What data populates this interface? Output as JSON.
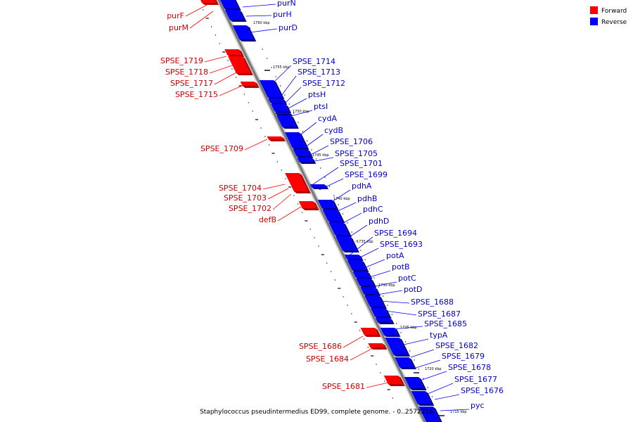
{
  "caption": "Staphylococcus pseudintermedius ED99, complete genome. - 0..2572216",
  "legend": [
    {
      "label": "Forward",
      "color": "#ff0000"
    },
    {
      "label": "Reverse",
      "color": "#0000ff"
    }
  ],
  "ticks": [
    "1760 kbp",
    "1755 kbp",
    "1750 kbp",
    "1745 kbp",
    "1740 kbp",
    "1735 kbp",
    "1730 kbp",
    "1725 kbp",
    "1720 kbp",
    "1715 kbp"
  ],
  "genes": [
    {
      "name": "purF",
      "strand": "forward"
    },
    {
      "name": "purM",
      "strand": "forward"
    },
    {
      "name": "purN",
      "strand": "reverse"
    },
    {
      "name": "purH",
      "strand": "reverse"
    },
    {
      "name": "purD",
      "strand": "reverse"
    },
    {
      "name": "SPSE_1719",
      "strand": "forward"
    },
    {
      "name": "SPSE_1718",
      "strand": "forward"
    },
    {
      "name": "SPSE_1717",
      "strand": "forward"
    },
    {
      "name": "SPSE_1715",
      "strand": "forward"
    },
    {
      "name": "SPSE_1714",
      "strand": "reverse"
    },
    {
      "name": "SPSE_1713",
      "strand": "reverse"
    },
    {
      "name": "SPSE_1712",
      "strand": "reverse"
    },
    {
      "name": "ptsH",
      "strand": "reverse"
    },
    {
      "name": "ptsI",
      "strand": "reverse"
    },
    {
      "name": "cydA",
      "strand": "reverse"
    },
    {
      "name": "cydB",
      "strand": "reverse"
    },
    {
      "name": "SPSE_1709",
      "strand": "forward"
    },
    {
      "name": "SPSE_1706",
      "strand": "reverse"
    },
    {
      "name": "SPSE_1705",
      "strand": "reverse"
    },
    {
      "name": "SPSE_1701",
      "strand": "reverse"
    },
    {
      "name": "SPSE_1699",
      "strand": "reverse"
    },
    {
      "name": "SPSE_1704",
      "strand": "forward"
    },
    {
      "name": "SPSE_1703",
      "strand": "forward"
    },
    {
      "name": "SPSE_1702",
      "strand": "forward"
    },
    {
      "name": "defB",
      "strand": "forward"
    },
    {
      "name": "pdhA",
      "strand": "reverse"
    },
    {
      "name": "pdhB",
      "strand": "reverse"
    },
    {
      "name": "pdhC",
      "strand": "reverse"
    },
    {
      "name": "pdhD",
      "strand": "reverse"
    },
    {
      "name": "SPSE_1694",
      "strand": "reverse"
    },
    {
      "name": "SPSE_1693",
      "strand": "reverse"
    },
    {
      "name": "potA",
      "strand": "reverse"
    },
    {
      "name": "potB",
      "strand": "reverse"
    },
    {
      "name": "potC",
      "strand": "reverse"
    },
    {
      "name": "potD",
      "strand": "reverse"
    },
    {
      "name": "SPSE_1688",
      "strand": "reverse"
    },
    {
      "name": "SPSE_1687",
      "strand": "reverse"
    },
    {
      "name": "SPSE_1685",
      "strand": "reverse"
    },
    {
      "name": "typA",
      "strand": "reverse"
    },
    {
      "name": "SPSE_1682",
      "strand": "reverse"
    },
    {
      "name": "SPSE_1679",
      "strand": "reverse"
    },
    {
      "name": "SPSE_1678",
      "strand": "reverse"
    },
    {
      "name": "SPSE_1677",
      "strand": "reverse"
    },
    {
      "name": "SPSE_1676",
      "strand": "reverse"
    },
    {
      "name": "pyc",
      "strand": "reverse"
    },
    {
      "name": "SPSE_1686",
      "strand": "forward"
    },
    {
      "name": "SPSE_1684",
      "strand": "forward"
    },
    {
      "name": "SPSE_1681",
      "strand": "forward"
    }
  ]
}
